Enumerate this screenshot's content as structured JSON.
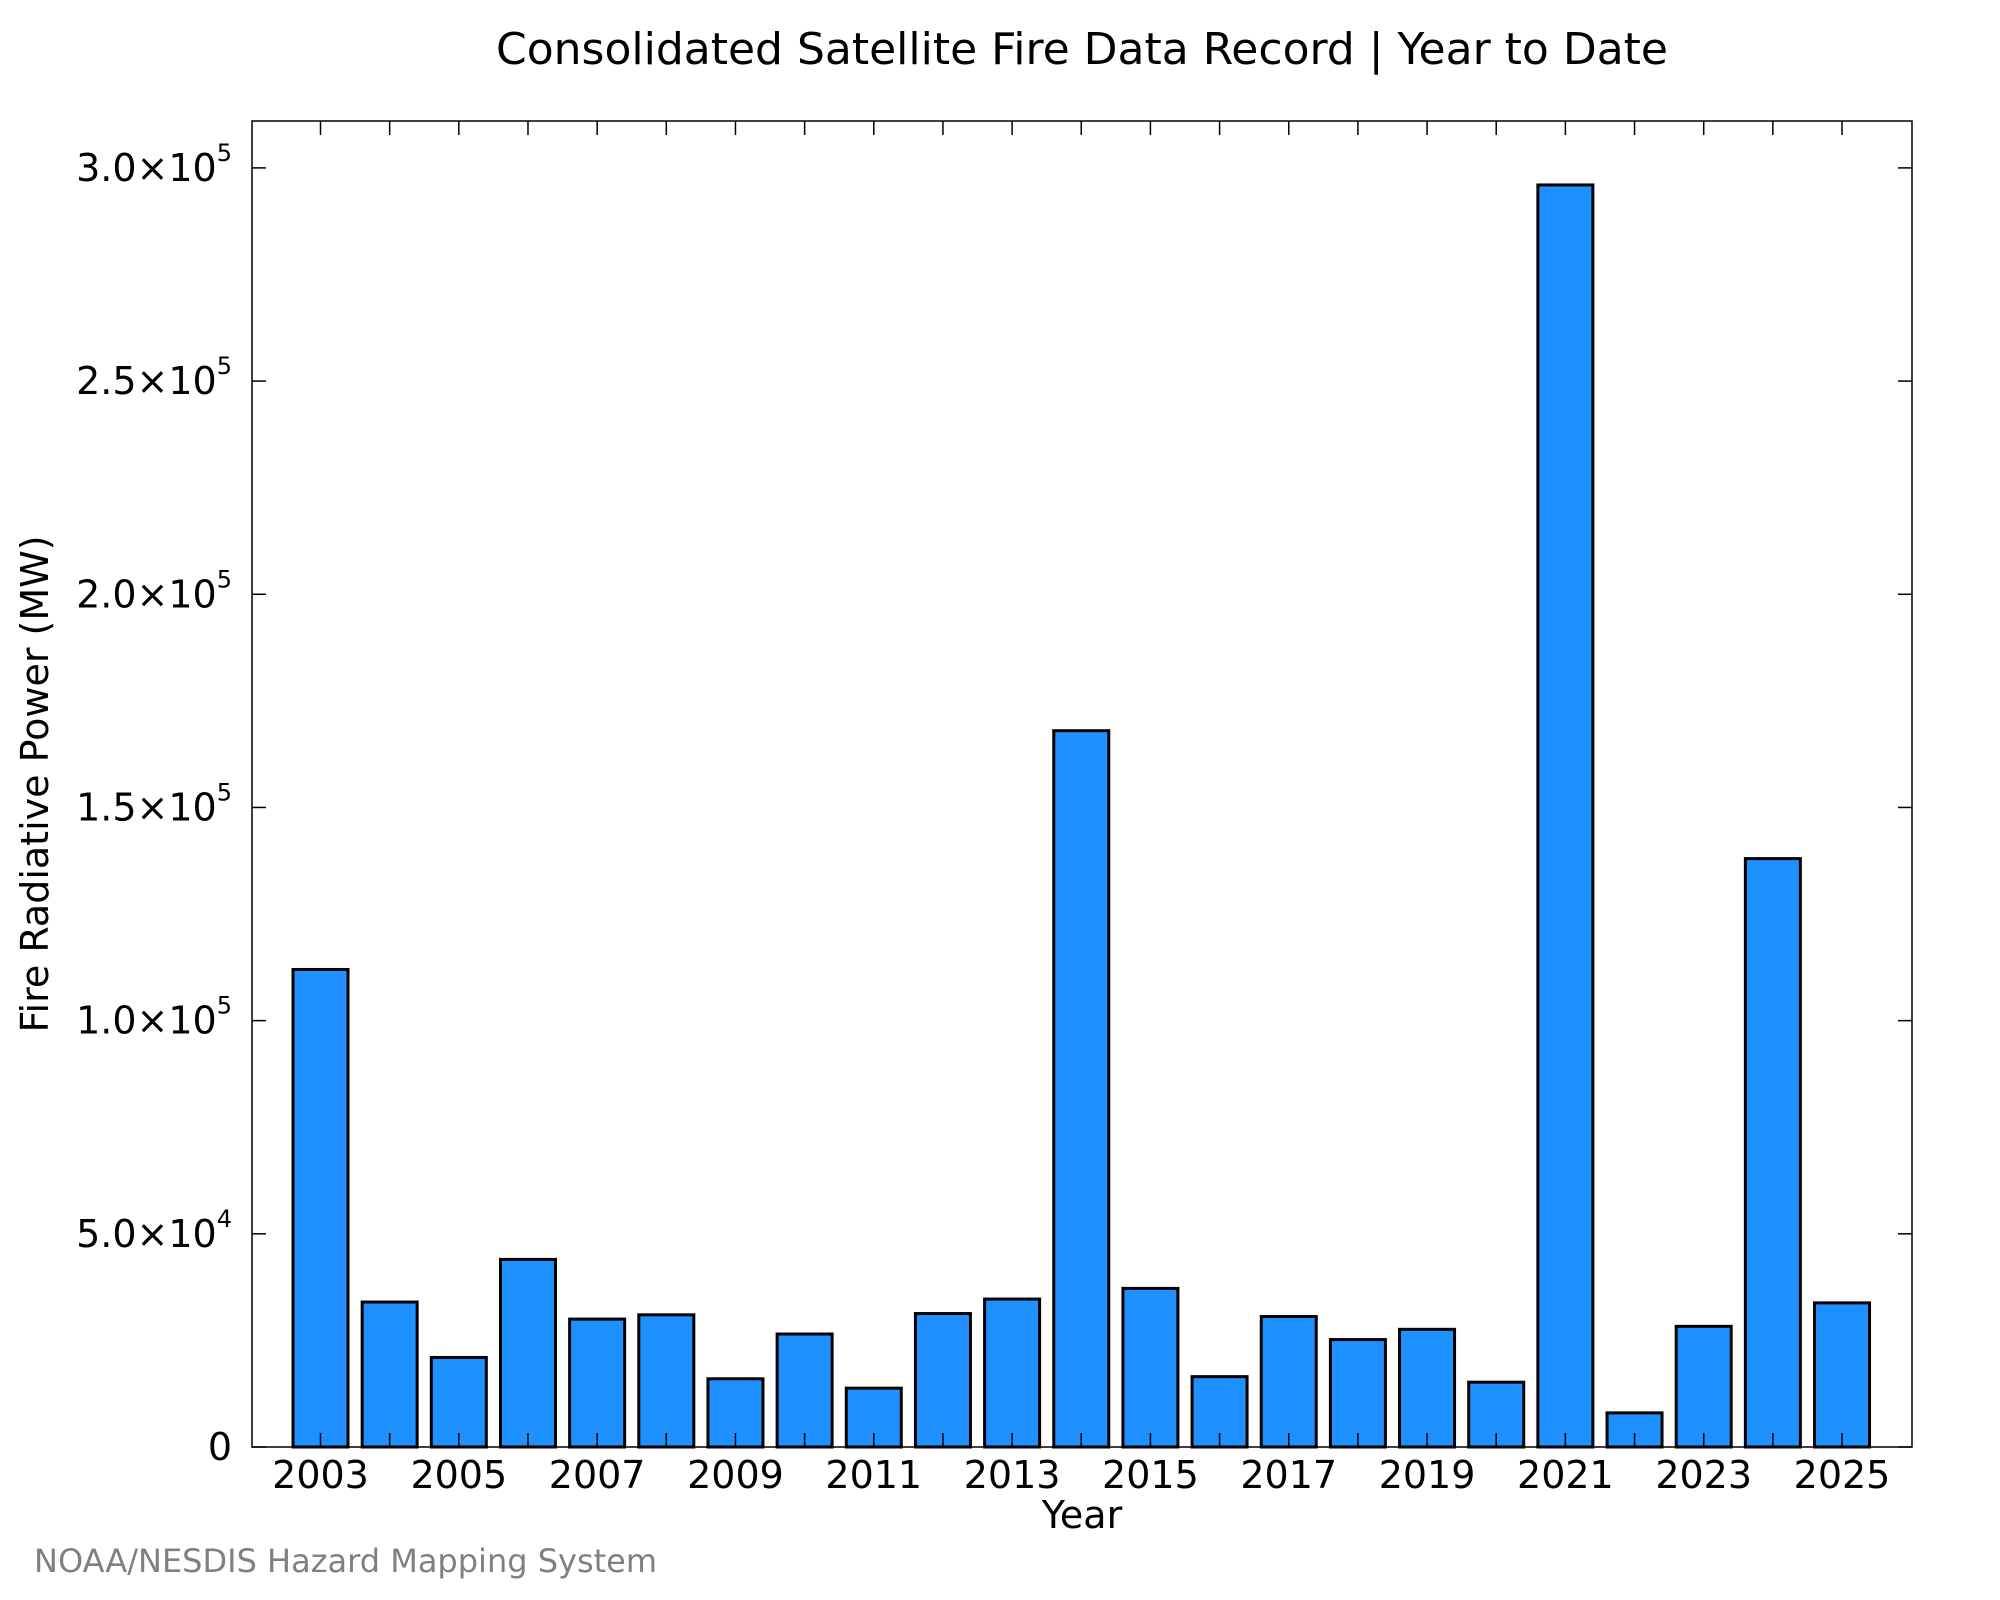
{
  "chart_data": {
    "type": "bar",
    "title": "Consolidated Satellite Fire Data Record | Year to Date",
    "xlabel": "Year",
    "ylabel": "Fire Radiative Power (MW)",
    "categories": [
      "2003",
      "2004",
      "2005",
      "2006",
      "2007",
      "2008",
      "2009",
      "2010",
      "2011",
      "2012",
      "2013",
      "2014",
      "2015",
      "2016",
      "2017",
      "2018",
      "2019",
      "2020",
      "2021",
      "2022",
      "2023",
      "2024",
      "2025"
    ],
    "values": [
      112000,
      34000,
      21000,
      44000,
      30000,
      31000,
      16000,
      26500,
      13800,
      31300,
      34700,
      168000,
      37200,
      16500,
      30600,
      25200,
      27600,
      15200,
      296000,
      8000,
      28300,
      138000,
      33800
    ],
    "ylim": [
      0,
      311000
    ],
    "xticks": [
      "2003",
      "2005",
      "2007",
      "2009",
      "2011",
      "2013",
      "2015",
      "2017",
      "2019",
      "2021",
      "2023",
      "2025"
    ],
    "yticks": [
      {
        "value": 0,
        "mantissa": "0",
        "exponent": ""
      },
      {
        "value": 50000,
        "mantissa": "5.0×10",
        "exponent": "4"
      },
      {
        "value": 100000,
        "mantissa": "1.0×10",
        "exponent": "5"
      },
      {
        "value": 150000,
        "mantissa": "1.5×10",
        "exponent": "5"
      },
      {
        "value": 200000,
        "mantissa": "2.0×10",
        "exponent": "5"
      },
      {
        "value": 250000,
        "mantissa": "2.5×10",
        "exponent": "5"
      },
      {
        "value": 300000,
        "mantissa": "3.0×10",
        "exponent": "5"
      }
    ],
    "bar_color": "#1E90FF",
    "bar_edge_color": "#000000",
    "grid": false,
    "legend": "none"
  },
  "credit": "NOAA/NESDIS Hazard Mapping System"
}
